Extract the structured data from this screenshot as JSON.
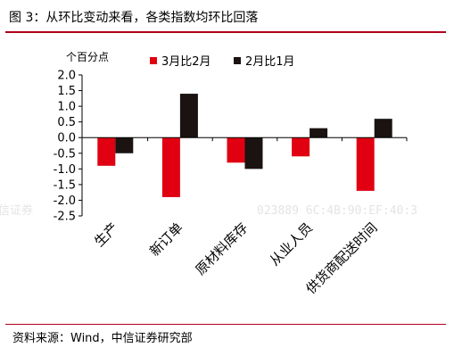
{
  "figure": {
    "title": "图 3：从环比变动来看，各类指数均环比回落",
    "source": "资料来源：Wind，中信证券研究部",
    "watermark_left": "信证券",
    "watermark_right": "023889  6C:4B:90:EF:40:3"
  },
  "chart_data": {
    "type": "bar",
    "title": "",
    "ylabel": "个百分点",
    "xlabel": "",
    "ylim": [
      -2.5,
      2.0
    ],
    "yticks": [
      -2.5,
      -2.0,
      -1.5,
      -1.0,
      -0.5,
      0.0,
      0.5,
      1.0,
      1.5,
      2.0
    ],
    "ytick_labels": [
      "-2.5",
      "-2.0",
      "-1.5",
      "-1.0",
      "-0.5",
      "0.0",
      "0.5",
      "1.0",
      "1.5",
      "2.0"
    ],
    "grid": false,
    "legend_position": "top",
    "categories": [
      "生产",
      "新订单",
      "原材料库存",
      "从业人员",
      "供货商配送时间"
    ],
    "series": [
      {
        "name": "3月比2月",
        "color": "#e00012",
        "values": [
          -0.9,
          -1.9,
          -0.8,
          -0.6,
          -1.7
        ]
      },
      {
        "name": "2月比1月",
        "color": "#1a1311",
        "values": [
          -0.5,
          1.4,
          -1.0,
          0.3,
          0.6
        ]
      }
    ]
  }
}
